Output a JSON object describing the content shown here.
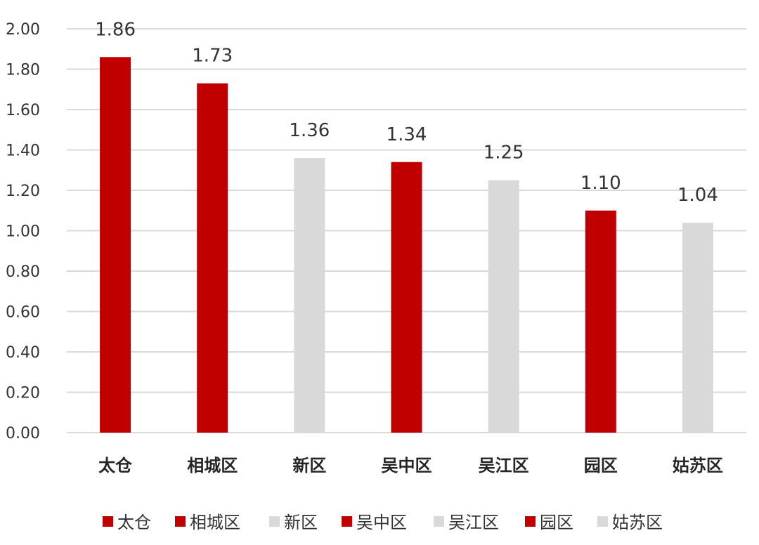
{
  "chart_data": {
    "type": "bar",
    "title": "",
    "xlabel": "",
    "ylabel": "",
    "ylim": [
      0,
      2.0
    ],
    "y_ticks": [
      "0.00",
      "0.20",
      "0.40",
      "0.60",
      "0.80",
      "1.00",
      "1.20",
      "1.40",
      "1.60",
      "1.80",
      "2.00"
    ],
    "grid": true,
    "legend_position": "bottom",
    "categories": [
      "太仓",
      "相城区",
      "新区",
      "吴中区",
      "吴江区",
      "园区",
      "姑苏区"
    ],
    "values": [
      1.86,
      1.73,
      1.36,
      1.34,
      1.25,
      1.1,
      1.04
    ],
    "value_labels": [
      "1.86",
      "1.73",
      "1.36",
      "1.34",
      "1.25",
      "1.10",
      "1.04"
    ],
    "bar_colors": [
      "#C00000",
      "#C00000",
      "#D9D9D9",
      "#C00000",
      "#D9D9D9",
      "#C00000",
      "#D9D9D9"
    ],
    "legend": [
      {
        "label": "太仓",
        "color": "#C00000"
      },
      {
        "label": "相城区",
        "color": "#C00000"
      },
      {
        "label": "新区",
        "color": "#D9D9D9"
      },
      {
        "label": "吴中区",
        "color": "#C00000"
      },
      {
        "label": "吴江区",
        "color": "#D9D9D9"
      },
      {
        "label": "园区",
        "color": "#C00000"
      },
      {
        "label": "姑苏区",
        "color": "#D9D9D9"
      }
    ]
  },
  "colors": {
    "highlight": "#C00000",
    "neutral": "#D9D9D9",
    "gridline": "#D9D9D9"
  }
}
